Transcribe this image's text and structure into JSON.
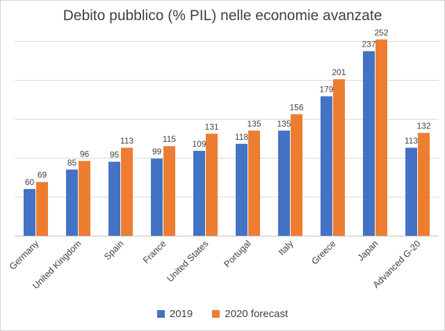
{
  "chart_data": {
    "type": "bar",
    "title": "Debito pubblico (% PIL) nelle economie avanzate",
    "xlabel": "",
    "ylabel": "",
    "ylim": [
      0,
      300
    ],
    "grid": true,
    "legend_position": "bottom",
    "categories": [
      "Germany",
      "United Kingdom",
      "Spain",
      "France",
      "United States",
      "Portugal",
      "Italy",
      "Greece",
      "Japan",
      "Advanced G-20"
    ],
    "series": [
      {
        "name": "2019",
        "color": "#4472c4",
        "values": [
          60,
          85,
          95,
          99,
          109,
          118,
          135,
          179,
          237,
          113
        ]
      },
      {
        "name": "2020 forecast",
        "color": "#ed7d31",
        "values": [
          69,
          96,
          113,
          115,
          131,
          135,
          156,
          201,
          252,
          132
        ]
      }
    ]
  }
}
